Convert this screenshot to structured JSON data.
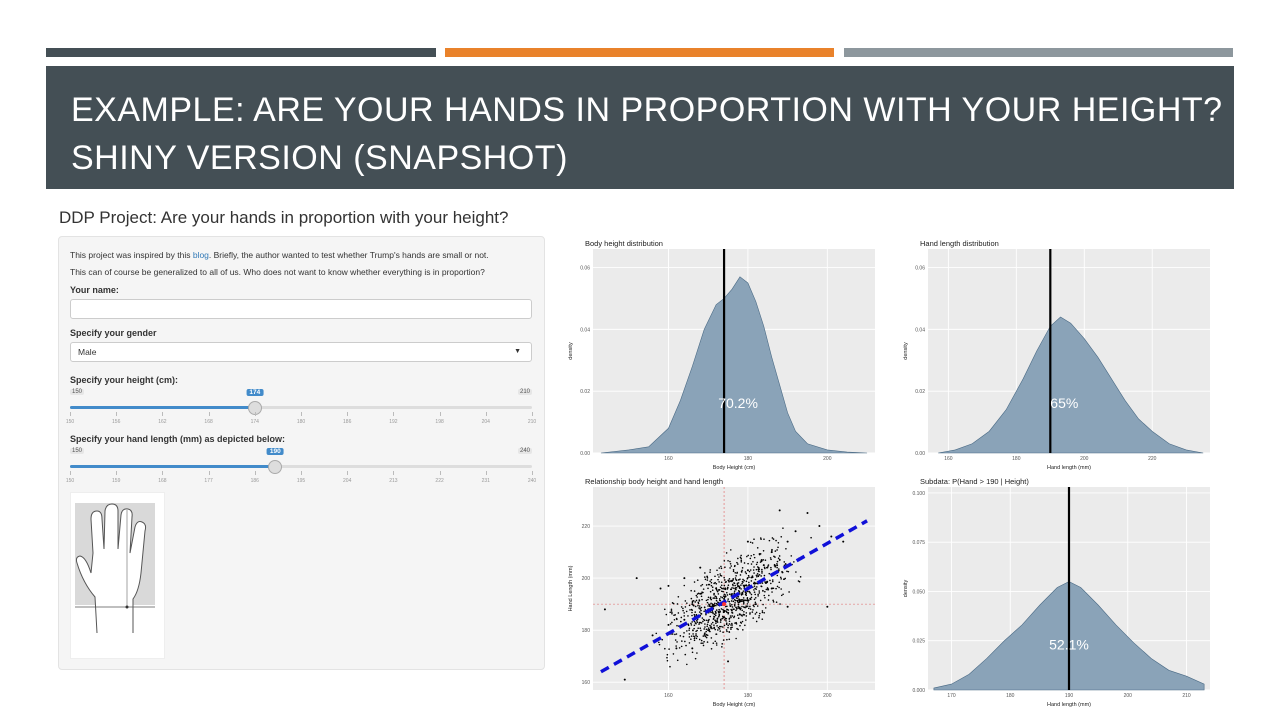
{
  "slide": {
    "title_line1": "EXAMPLE: ARE YOUR HANDS IN PROPORTION WITH YOUR HEIGHT?",
    "title_line2": "SHINY VERSION (SNAPSHOT)",
    "colors": {
      "bar1": "#444f55",
      "bar2": "#e9822b",
      "bar3": "#8d979d",
      "title_bg": "#444f55"
    }
  },
  "app": {
    "title": "DDP Project: Are your hands in proportion with your height?",
    "intro1_pre": "This project was inspired by this ",
    "intro1_link": "blog",
    "intro1_post": ". Briefly, the author wanted to test whether Trump's hands are small or not.",
    "intro2": "This can of course be generalized to all of us. Who does not want to know whether everything is in proportion?",
    "name_label": "Your name:",
    "name_value": "",
    "gender_label": "Specify your gender",
    "gender_value": "Male",
    "height_label": "Specify your height (cm):",
    "height_slider": {
      "min": 150,
      "max": 210,
      "value": 174,
      "ticks": [
        "150",
        "156",
        "162",
        "168",
        "174",
        "180",
        "186",
        "192",
        "198",
        "204",
        "210"
      ]
    },
    "hand_label": "Specify your hand length (mm) as depicted below:",
    "hand_slider": {
      "min": 150,
      "max": 240,
      "value": 190,
      "ticks": [
        "150",
        "159",
        "168",
        "177",
        "186",
        "195",
        "204",
        "213",
        "222",
        "231",
        "240"
      ]
    },
    "hand_image": "hand-measurement-diagram"
  },
  "chart_data": [
    {
      "type": "area",
      "title": "Body height distribution",
      "xlabel": "Body Height (cm)",
      "ylabel": "density",
      "xlim": [
        141,
        212
      ],
      "ylim": [
        0,
        0.066
      ],
      "xticks": [
        "160",
        "180",
        "200"
      ],
      "yticks": [
        "0.00",
        "0.02",
        "0.04",
        "0.06"
      ],
      "x": [
        143,
        150,
        155,
        160,
        163,
        166,
        169,
        172,
        174,
        176,
        178,
        180,
        182,
        184,
        186,
        188,
        190,
        192,
        195,
        200,
        205,
        210
      ],
      "y": [
        0,
        0.001,
        0.002,
        0.008,
        0.017,
        0.028,
        0.04,
        0.048,
        0.05,
        0.053,
        0.057,
        0.055,
        0.049,
        0.041,
        0.031,
        0.022,
        0.013,
        0.007,
        0.003,
        0.001,
        0.0003,
        0
      ],
      "vline": 174,
      "annotation": "70.2%",
      "fill": "#8aa3b8"
    },
    {
      "type": "area",
      "title": "Hand length distribution",
      "xlabel": "Hand length (mm)",
      "ylabel": "density",
      "xlim": [
        154,
        237
      ],
      "ylim": [
        0,
        0.066
      ],
      "xticks": [
        "160",
        "180",
        "200",
        "220"
      ],
      "yticks": [
        "0.00",
        "0.02",
        "0.04",
        "0.06"
      ],
      "x": [
        157,
        162,
        167,
        172,
        177,
        182,
        186,
        190,
        193,
        196,
        200,
        204,
        208,
        212,
        216,
        220,
        225,
        230,
        235
      ],
      "y": [
        0,
        0.001,
        0.003,
        0.007,
        0.014,
        0.024,
        0.033,
        0.041,
        0.044,
        0.042,
        0.037,
        0.031,
        0.024,
        0.017,
        0.011,
        0.007,
        0.003,
        0.001,
        0
      ],
      "vline": 190,
      "annotation": "65%",
      "fill": "#8aa3b8"
    },
    {
      "type": "scatter",
      "title": "Relationship body height and hand length",
      "xlabel": "Body Height (cm)",
      "ylabel": "Hand Length (mm)",
      "xlim": [
        141,
        212
      ],
      "ylim": [
        157,
        235
      ],
      "xticks": [
        "160",
        "180",
        "200"
      ],
      "yticks": [
        "160",
        "180",
        "200",
        "220"
      ],
      "points": [
        [
          144,
          188
        ],
        [
          149,
          161
        ],
        [
          152,
          200
        ],
        [
          156,
          178
        ],
        [
          158,
          196
        ],
        [
          160,
          182
        ],
        [
          162,
          173
        ],
        [
          164,
          184
        ],
        [
          166,
          190
        ],
        [
          168,
          194
        ],
        [
          170,
          188
        ],
        [
          172,
          196
        ],
        [
          174,
          192
        ],
        [
          176,
          199
        ],
        [
          178,
          191
        ],
        [
          180,
          203
        ],
        [
          182,
          198
        ],
        [
          184,
          205
        ],
        [
          186,
          210
        ],
        [
          188,
          207
        ],
        [
          190,
          214
        ],
        [
          192,
          218
        ],
        [
          195,
          225
        ],
        [
          198,
          220
        ],
        [
          201,
          216
        ],
        [
          204,
          214
        ],
        [
          166,
          173
        ],
        [
          170,
          180
        ],
        [
          174,
          185
        ],
        [
          178,
          186
        ],
        [
          182,
          190
        ],
        [
          186,
          196
        ],
        [
          175,
          168
        ],
        [
          168,
          204
        ],
        [
          180,
          214
        ],
        [
          188,
          226
        ],
        [
          160,
          197
        ],
        [
          164,
          200
        ],
        [
          190,
          189
        ],
        [
          200,
          189
        ]
      ],
      "trend": [
        [
          143,
          164
        ],
        [
          210,
          222
        ]
      ],
      "hline": 190,
      "vline": 174
    },
    {
      "type": "area",
      "title": "Subdata: P(Hand > 190 | Height)",
      "xlabel": "Hand length (mm)",
      "ylabel": "density",
      "xlim": [
        166,
        214
      ],
      "ylim": [
        0,
        0.103
      ],
      "xticks": [
        "170",
        "180",
        "190",
        "200",
        "210"
      ],
      "yticks": [
        "0.000",
        "0.025",
        "0.050",
        "0.075",
        "0.100"
      ],
      "x": [
        167,
        170,
        173,
        176,
        179,
        182,
        185,
        188,
        190,
        192,
        195,
        198,
        201,
        204,
        207,
        210,
        213
      ],
      "y": [
        0.001,
        0.003,
        0.008,
        0.016,
        0.025,
        0.033,
        0.043,
        0.052,
        0.055,
        0.052,
        0.043,
        0.033,
        0.024,
        0.016,
        0.01,
        0.007,
        0.003
      ],
      "vline": 190,
      "annotation": "52.1%",
      "fill": "#8aa3b8"
    }
  ]
}
